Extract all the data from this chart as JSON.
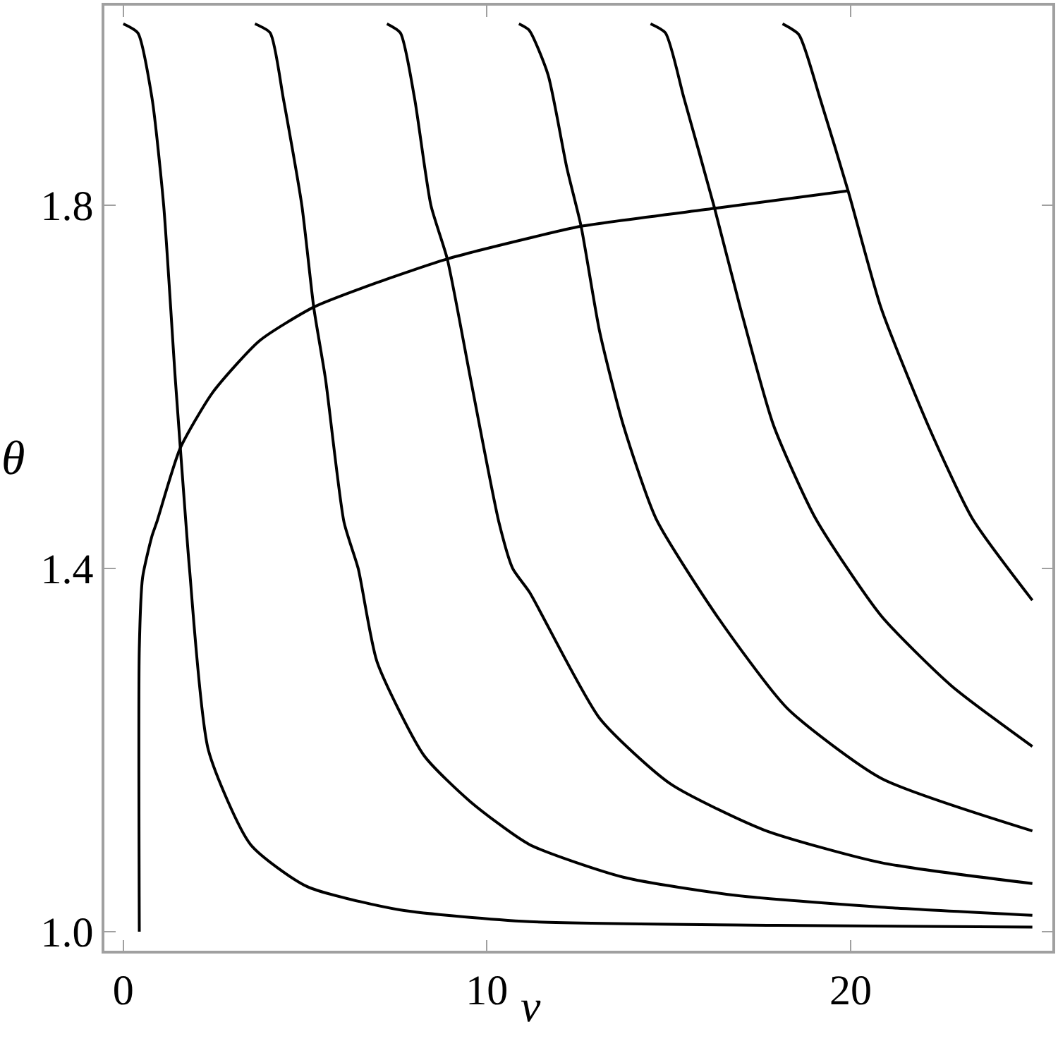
{
  "chart_data": {
    "type": "line",
    "xlabel": "ν",
    "ylabel": "θ",
    "xlim": [
      -0.52,
      25.55
    ],
    "ylim": [
      0.979,
      2.02
    ],
    "xticks": [
      0,
      10,
      20
    ],
    "yticks": [
      {
        "value": 1.0,
        "label": "1.0"
      },
      {
        "value": 1.4,
        "label": "1.4"
      },
      {
        "value": 1.8,
        "label": "1.8"
      }
    ],
    "marker": "none",
    "line_style": "solid",
    "series": [
      {
        "color": "#000000",
        "x": [
          0.0,
          0.4,
          0.79,
          1.11,
          1.43,
          1.72,
          1.82,
          2.34,
          3.5,
          5.04,
          7.6,
          11.17,
          18.0,
          25.0
        ],
        "values": [
          2.0,
          1.99,
          1.918,
          1.8,
          1.609,
          1.451,
          1.4,
          1.2,
          1.096,
          1.05,
          1.024,
          1.011,
          1.007,
          1.005
        ]
      },
      {
        "color": "#000000",
        "x": [
          3.62,
          4.04,
          4.4,
          4.91,
          5.24,
          5.56,
          6.07,
          6.46,
          6.98,
          8.27,
          9.55,
          11.17,
          13.75,
          16.84,
          20.84,
          25.0
        ],
        "values": [
          2.0,
          1.99,
          1.918,
          1.8,
          1.687,
          1.609,
          1.451,
          1.4,
          1.297,
          1.194,
          1.143,
          1.096,
          1.06,
          1.04,
          1.027,
          1.018
        ]
      },
      {
        "color": "#000000",
        "x": [
          7.25,
          7.62,
          8.01,
          8.46,
          8.91,
          9.55,
          10.33,
          10.71,
          11.17,
          13.1,
          15.04,
          17.62,
          20.84,
          25.0
        ],
        "values": [
          2.0,
          1.99,
          1.918,
          1.8,
          1.741,
          1.609,
          1.451,
          1.4,
          1.374,
          1.235,
          1.163,
          1.112,
          1.076,
          1.053
        ]
      },
      {
        "color": "#000000",
        "x": [
          10.88,
          11.16,
          11.68,
          12.2,
          12.59,
          13.1,
          13.75,
          14.65,
          16.32,
          18.26,
          20.84,
          25.0
        ],
        "values": [
          2.0,
          1.993,
          1.944,
          1.841,
          1.777,
          1.661,
          1.558,
          1.455,
          1.348,
          1.246,
          1.169,
          1.111
        ]
      },
      {
        "color": "#000000",
        "x": [
          14.5,
          14.91,
          15.42,
          16.26,
          16.97,
          17.88,
          19.04,
          20.84,
          22.77,
          25.0
        ],
        "values": [
          2.0,
          1.99,
          1.918,
          1.797,
          1.687,
          1.558,
          1.455,
          1.348,
          1.271,
          1.204
        ]
      },
      {
        "color": "#000000",
        "x": [
          18.13,
          18.58,
          19.16,
          19.94,
          20.84,
          22.13,
          23.35,
          25.0
        ],
        "values": [
          2.0,
          1.988,
          1.918,
          1.815,
          1.687,
          1.558,
          1.455,
          1.365
        ]
      },
      {
        "color": "#000000",
        "x": [
          0.44,
          0.44,
          0.53,
          0.79,
          0.92,
          1.56,
          2.46,
          3.75,
          5.24,
          6.98,
          8.91,
          11.17,
          12.59,
          16.32,
          19.94
        ],
        "values": [
          1.0,
          1.312,
          1.39,
          1.436,
          1.451,
          1.532,
          1.594,
          1.651,
          1.688,
          1.715,
          1.741,
          1.764,
          1.777,
          1.797,
          1.816
        ]
      }
    ]
  }
}
